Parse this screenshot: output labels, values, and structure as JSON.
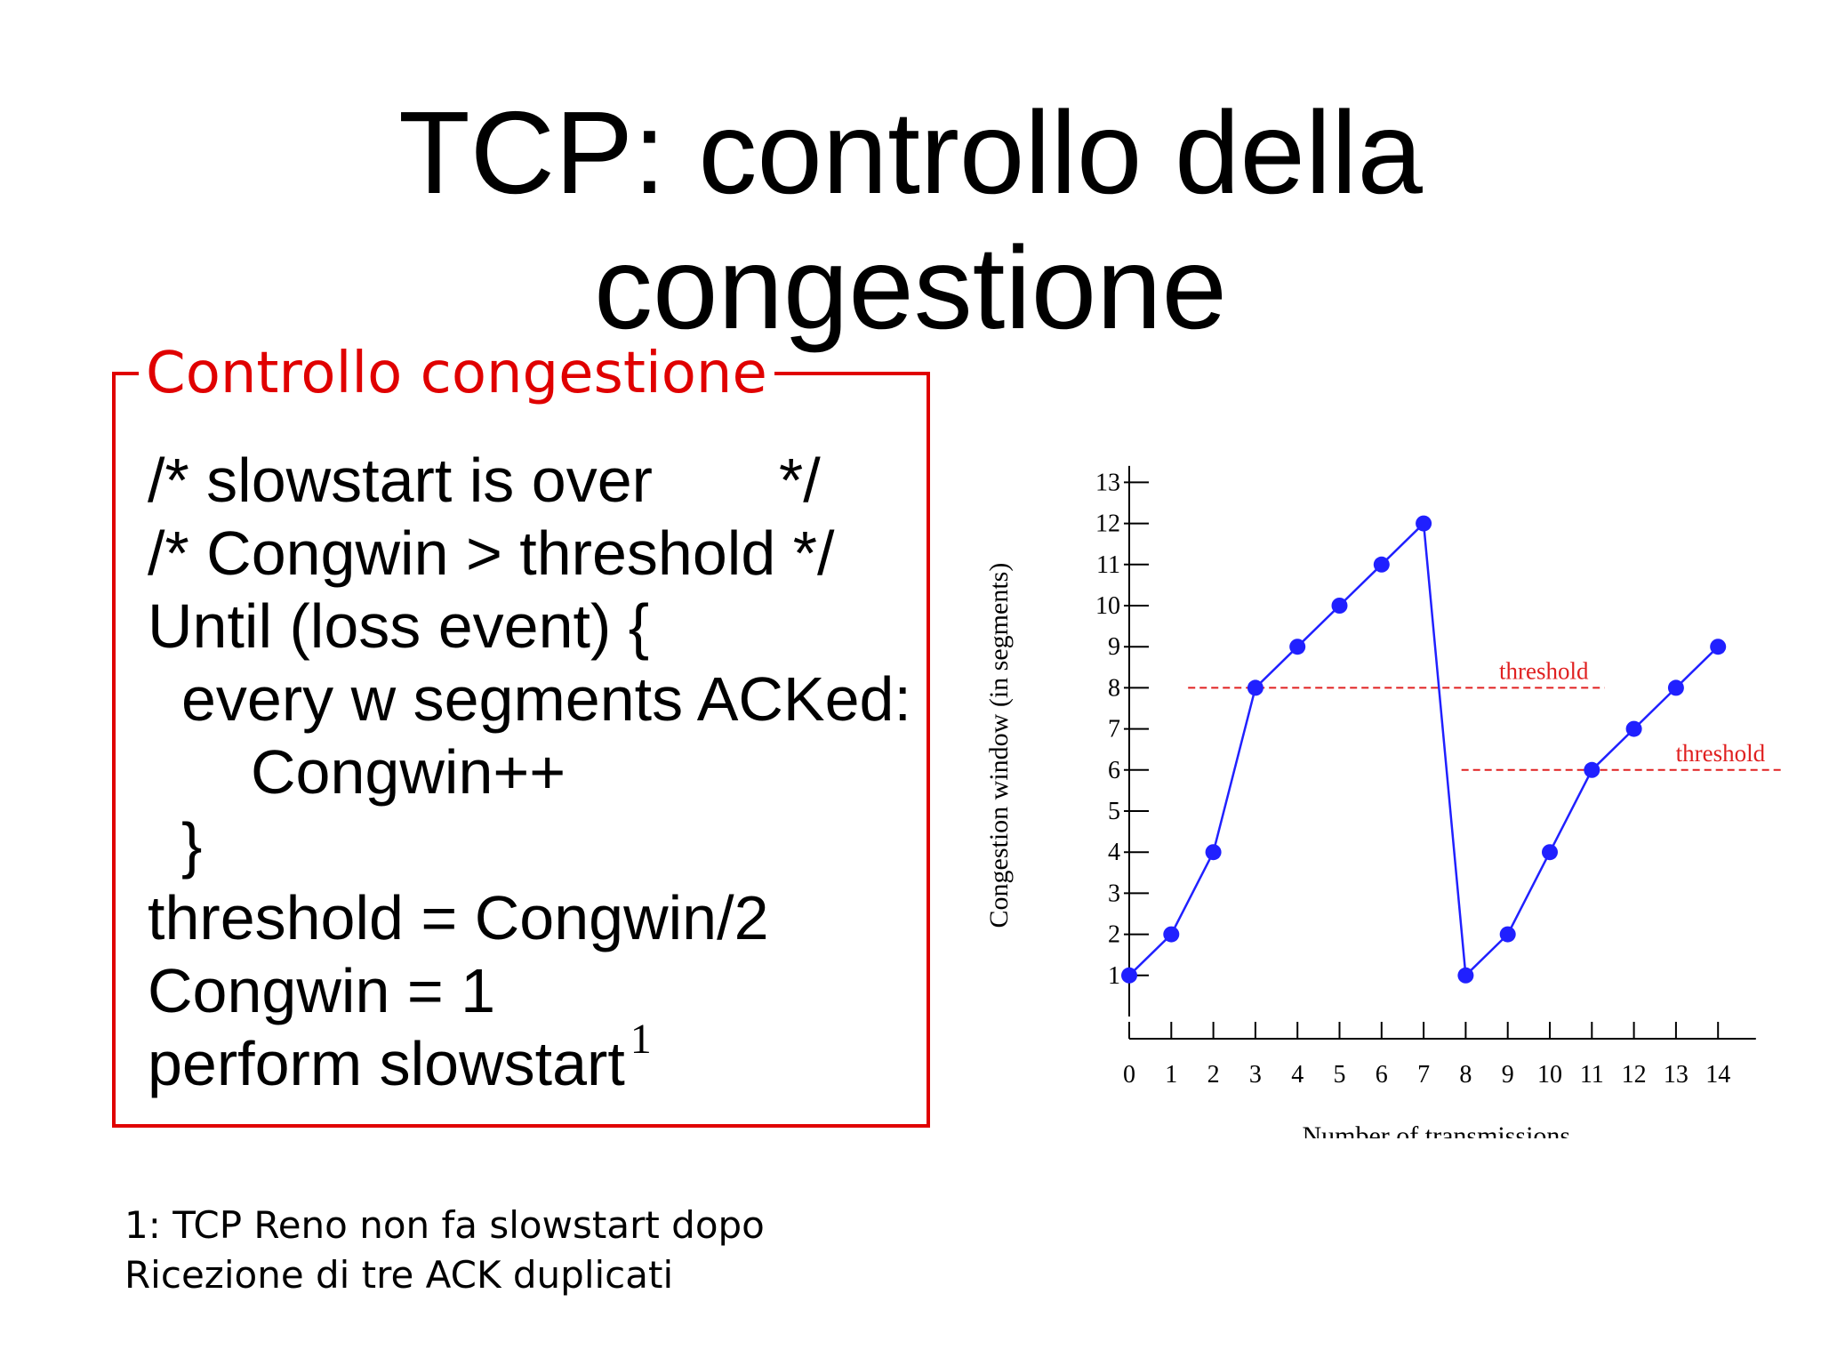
{
  "slide": {
    "title_line1": "TCP: controllo della",
    "title_line2": "congestione"
  },
  "box": {
    "title": "Controllo congestione",
    "lines": [
      "/* slowstart is over",
      "*/",
      "/* Congwin > threshold */",
      "Until (loss event) {",
      "every w segments ACKed:",
      "Congwin++",
      "}",
      "threshold = Congwin/2",
      "Congwin = 1",
      "perform slowstart"
    ],
    "superscript": "1"
  },
  "footnote": {
    "line1": "1: TCP Reno non fa slowstart dopo",
    "line2": "Ricezione di tre ACK duplicati"
  },
  "colors": {
    "accent_red": "#e00000",
    "series_blue": "#2020ff",
    "threshold_red": "#e02020",
    "axis": "#000000"
  },
  "chart_data": {
    "type": "line",
    "xlabel": "Number of transmissions",
    "ylabel": "Congestion window (in segments)",
    "xlim": [
      0,
      14
    ],
    "ylim": [
      0,
      13
    ],
    "x_ticks": [
      0,
      1,
      2,
      3,
      4,
      5,
      6,
      7,
      8,
      9,
      10,
      11,
      12,
      13,
      14
    ],
    "y_ticks": [
      1,
      2,
      3,
      4,
      5,
      6,
      7,
      8,
      9,
      10,
      11,
      12,
      13
    ],
    "grid": false,
    "series": [
      {
        "x": [
          0,
          1,
          2,
          3,
          4,
          5,
          6,
          7,
          8,
          9,
          10,
          11,
          12,
          13,
          14
        ],
        "values": [
          1,
          2,
          4,
          8,
          9,
          10,
          11,
          12,
          1,
          2,
          4,
          6,
          7,
          8,
          9
        ]
      }
    ],
    "thresholds": [
      {
        "label": "threshold",
        "y": 8,
        "x_start": 1.4,
        "x_end": 11.3
      },
      {
        "label": "threshold",
        "y": 6,
        "x_start": 7.9,
        "x_end": 15.5
      }
    ]
  }
}
